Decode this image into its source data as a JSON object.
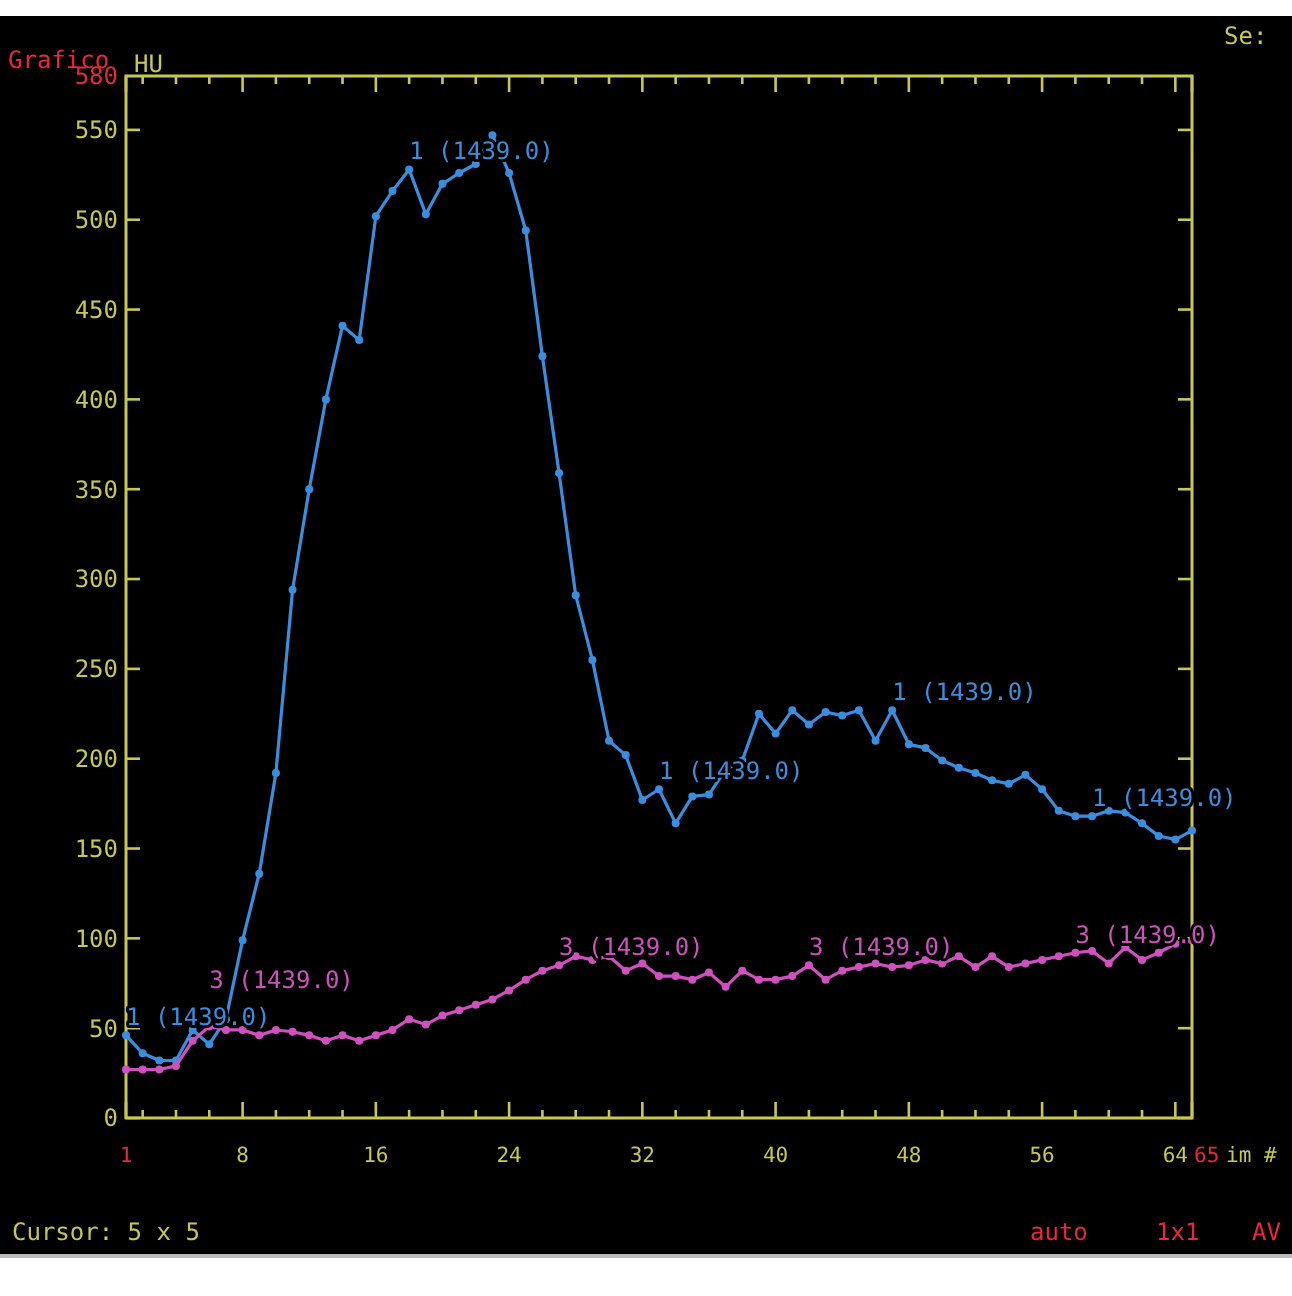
{
  "chart_data": {
    "type": "line",
    "ylabel": "HU",
    "xlabel": "im #",
    "x": [
      1,
      2,
      3,
      4,
      5,
      6,
      7,
      8,
      9,
      10,
      11,
      12,
      13,
      14,
      15,
      16,
      17,
      18,
      19,
      20,
      21,
      22,
      23,
      24,
      25,
      26,
      27,
      28,
      29,
      30,
      31,
      32,
      33,
      34,
      35,
      36,
      37,
      38,
      39,
      40,
      41,
      42,
      43,
      44,
      45,
      46,
      47,
      48,
      49,
      50,
      51,
      52,
      53,
      54,
      55,
      56,
      57,
      58,
      59,
      60,
      61,
      62,
      63,
      64,
      65
    ],
    "series": [
      {
        "color": "#3a8ee0",
        "values": [
          46,
          36,
          32,
          32,
          49,
          41,
          55,
          99,
          136,
          192,
          294,
          350,
          400,
          441,
          433,
          502,
          516,
          528,
          503,
          520,
          526,
          531,
          547,
          526,
          494,
          424,
          359,
          291,
          255,
          210,
          202,
          177,
          183,
          164,
          179,
          180,
          194,
          199,
          225,
          214,
          227,
          219,
          226,
          224,
          227,
          210,
          227,
          208,
          206,
          199,
          195,
          192,
          188,
          186,
          191,
          183,
          171,
          168,
          168,
          171,
          170,
          164,
          157,
          155,
          160
        ]
      },
      {
        "color": "#d050c0",
        "values": [
          27,
          27,
          27,
          29,
          43,
          51,
          49,
          49,
          46,
          49,
          48,
          46,
          43,
          46,
          43,
          46,
          49,
          55,
          52,
          57,
          60,
          63,
          66,
          71,
          77,
          82,
          85,
          90,
          88,
          90,
          82,
          86,
          79,
          79,
          77,
          81,
          73,
          82,
          77,
          77,
          79,
          85,
          77,
          82,
          84,
          86,
          84,
          85,
          88,
          86,
          90,
          84,
          90,
          84,
          86,
          88,
          90,
          92,
          93,
          86,
          95,
          88,
          92,
          97,
          99
        ]
      }
    ],
    "xlim": [
      1,
      65
    ],
    "ylim": [
      0,
      580
    ],
    "xticks": [
      1,
      {
        "value": 2,
        "label": null
      },
      {
        "value": 4,
        "label": null
      },
      {
        "value": 6,
        "label": null
      },
      8,
      {
        "value": 10,
        "label": null
      },
      {
        "value": 12,
        "label": null
      },
      {
        "value": 14,
        "label": null
      },
      16,
      {
        "value": 18,
        "label": null
      },
      {
        "value": 20,
        "label": null
      },
      {
        "value": 22,
        "label": null
      },
      24,
      {
        "value": 26,
        "label": null
      },
      {
        "value": 28,
        "label": null
      },
      {
        "value": 30,
        "label": null
      },
      32,
      {
        "value": 34,
        "label": null
      },
      {
        "value": 36,
        "label": null
      },
      {
        "value": 38,
        "label": null
      },
      40,
      {
        "value": 42,
        "label": null
      },
      {
        "value": 44,
        "label": null
      },
      {
        "value": 46,
        "label": null
      },
      48,
      {
        "value": 50,
        "label": null
      },
      {
        "value": 52,
        "label": null
      },
      {
        "value": 54,
        "label": null
      },
      56,
      {
        "value": 58,
        "label": null
      },
      {
        "value": 60,
        "label": null
      },
      {
        "value": 62,
        "label": null
      },
      64,
      65
    ],
    "yticks": [
      0,
      50,
      100,
      150,
      200,
      250,
      300,
      350,
      400,
      450,
      500,
      550,
      580
    ],
    "marker": "circle",
    "line_style": "solid",
    "grid": false,
    "annotations": [
      {
        "text": "1 (1439.0)",
        "x": 1,
        "y": 46
      },
      {
        "text": "1 (1439.0)",
        "x": 18,
        "y": 528
      },
      {
        "text": "1 (1439.0)",
        "x": 33,
        "y": 183
      },
      {
        "text": "1 (1439.0)",
        "x": 47,
        "y": 227
      },
      {
        "text": "1 (1439.0)",
        "x": 59,
        "y": 168
      },
      {
        "text": "3 (1439.0)",
        "x": 6,
        "y": 51
      },
      {
        "text": "3 (1439.0)",
        "x": 27,
        "y": 85
      },
      {
        "text": "3 (1439.0)",
        "x": 42,
        "y": 85
      },
      {
        "text": "3 (1439.0)",
        "x": 58,
        "y": 92
      },
      "Grafico",
      "Se:",
      "Cursor: 5 x 5",
      "auto",
      "1x1",
      "AV"
    ]
  }
}
